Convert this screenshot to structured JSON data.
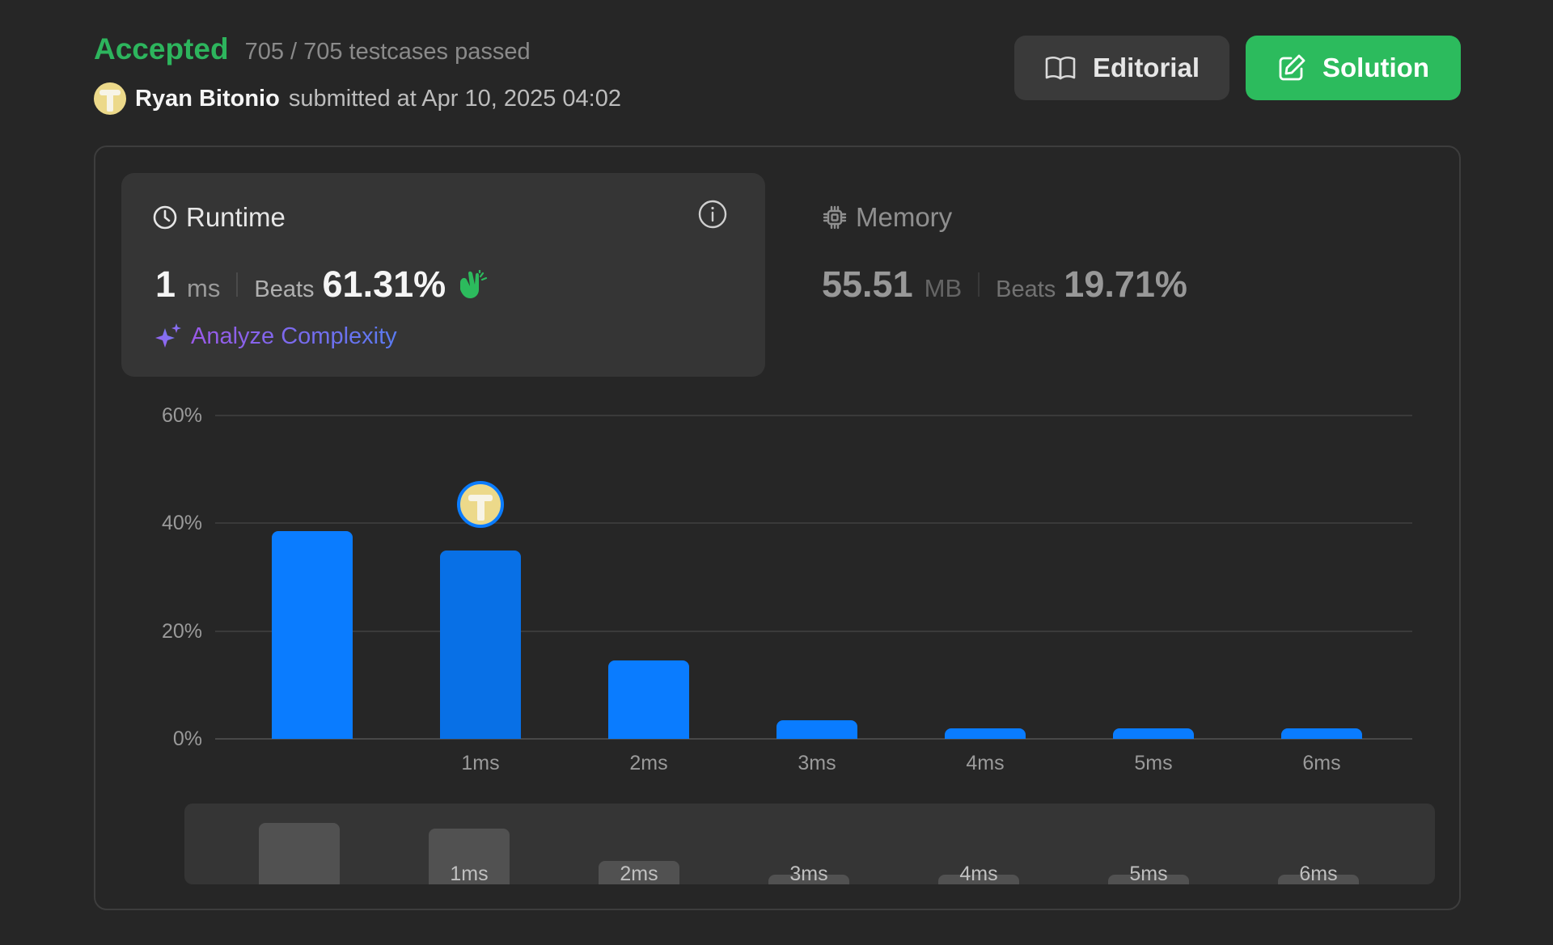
{
  "submission": {
    "status": "Accepted",
    "testcases": "705 / 705 testcases passed",
    "author": "Ryan Bitonio",
    "submitted_text": "submitted at Apr 10, 2025 04:02"
  },
  "buttons": {
    "editorial": "Editorial",
    "solution": "Solution"
  },
  "runtime": {
    "title": "Runtime",
    "value": "1",
    "unit": "ms",
    "beats_label": "Beats",
    "beats_pct": "61.31%",
    "analyze": "Analyze Complexity"
  },
  "memory": {
    "title": "Memory",
    "value": "55.51",
    "unit": "MB",
    "beats_label": "Beats",
    "beats_pct": "19.71%"
  },
  "colors": {
    "accepted": "#2db55d",
    "bar": "#0a7cff",
    "solution_button": "#2cbb5d"
  },
  "chart_data": {
    "type": "bar",
    "categories": [
      "",
      "1ms",
      "2ms",
      "3ms",
      "4ms",
      "5ms",
      "6ms"
    ],
    "values": [
      38.5,
      35,
      14.5,
      3.5,
      2,
      2,
      2
    ],
    "highlight_index": 1,
    "yticks": [
      "0%",
      "20%",
      "40%",
      "60%"
    ],
    "ylim": [
      0,
      60
    ],
    "grid": true
  }
}
